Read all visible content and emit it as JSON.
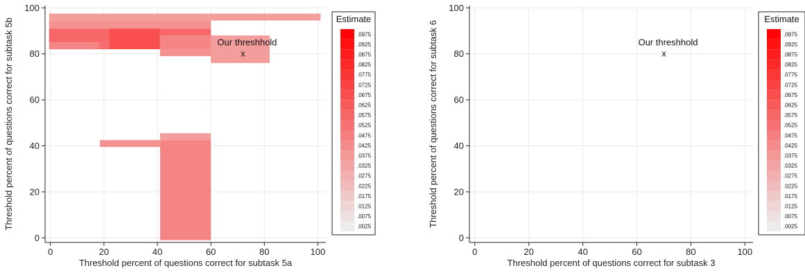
{
  "chart_data": [
    {
      "type": "heatmap",
      "title": "",
      "xlabel": "Threshold percent of questions correct for subtask 5a",
      "ylabel": "Threshold percent of questions correct for subtask 5b",
      "xlim": [
        -2,
        103
      ],
      "ylim": [
        -2,
        101
      ],
      "xticks": [
        0,
        20,
        40,
        60,
        80,
        100
      ],
      "yticks": [
        0,
        20,
        40,
        60,
        80,
        100
      ],
      "grid": true,
      "annotation": {
        "label": "Our threshhold",
        "marker": "x",
        "x": 72,
        "y": 80
      },
      "legend": {
        "title": "Estimate",
        "position": "right",
        "levels": [
          ".0975",
          ".0925",
          ".0875",
          ".0825",
          ".0775",
          ".0725",
          ".0675",
          ".0625",
          ".0575",
          ".0525",
          ".0475",
          ".0425",
          ".0375",
          ".0325",
          ".0275",
          ".0225",
          ".0175",
          ".0125",
          ".0075",
          ".0025"
        ]
      },
      "cells": [
        {
          "x0": -0.5,
          "x1": 101,
          "y0": 94.5,
          "y1": 97.5,
          "value": 0.035
        },
        {
          "x0": -0.5,
          "x1": 60,
          "y0": 91,
          "y1": 94.5,
          "value": 0.04
        },
        {
          "x0": -0.5,
          "x1": 22,
          "y0": 85,
          "y1": 91,
          "value": 0.057
        },
        {
          "x0": -0.5,
          "x1": 18,
          "y0": 82,
          "y1": 85,
          "value": 0.045
        },
        {
          "x0": 18,
          "x1": 22,
          "y0": 82,
          "y1": 85,
          "value": 0.055
        },
        {
          "x0": 22,
          "x1": 41,
          "y0": 82,
          "y1": 91,
          "value": 0.067
        },
        {
          "x0": 41,
          "x1": 60,
          "y0": 88,
          "y1": 91,
          "value": 0.057
        },
        {
          "x0": 41,
          "x1": 60,
          "y0": 82,
          "y1": 88,
          "value": 0.045
        },
        {
          "x0": 41,
          "x1": 60,
          "y0": 79,
          "y1": 82,
          "value": 0.04
        },
        {
          "x0": 60,
          "x1": 82,
          "y0": 76,
          "y1": 88,
          "value": 0.035
        },
        {
          "x0": 18.5,
          "x1": 41,
          "y0": 39.5,
          "y1": 42.5,
          "value": 0.04
        },
        {
          "x0": 41,
          "x1": 60,
          "y0": 42.5,
          "y1": 45.5,
          "value": 0.035
        },
        {
          "x0": 41,
          "x1": 60,
          "y0": -1,
          "y1": 42.5,
          "value": 0.045
        }
      ]
    },
    {
      "type": "heatmap",
      "title": "",
      "xlabel": "Threshold percent of questions correct for subtask 3",
      "ylabel": "Threshold percent of questions correct for subtask 6",
      "xlim": [
        -2,
        103
      ],
      "ylim": [
        -2,
        101
      ],
      "xticks": [
        0,
        20,
        40,
        60,
        80,
        100
      ],
      "yticks": [
        0,
        20,
        40,
        60,
        80,
        100
      ],
      "grid": true,
      "annotation": {
        "label": "Our threshhold",
        "marker": "x",
        "x": 70,
        "y": 80
      },
      "legend": {
        "title": "Estimate",
        "position": "right",
        "levels": [
          ".0975",
          ".0925",
          ".0875",
          ".0825",
          ".0775",
          ".0725",
          ".0675",
          ".0625",
          ".0575",
          ".0525",
          ".0475",
          ".0425",
          ".0375",
          ".0325",
          ".0275",
          ".0225",
          ".0175",
          ".0125",
          ".0075",
          ".0025"
        ]
      },
      "cells": []
    }
  ]
}
